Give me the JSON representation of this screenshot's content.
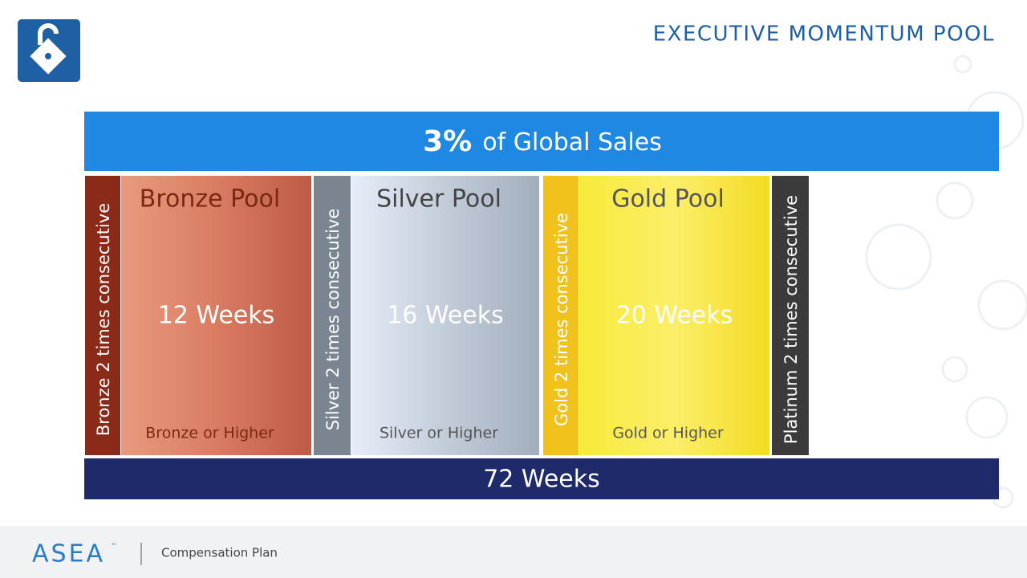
{
  "header": {
    "title": "EXECUTIVE MOMENTUM POOL"
  },
  "banner": {
    "percent": "3%",
    "text": "of Global Sales"
  },
  "pools": [
    {
      "side": "Bronze 2 times consecutive",
      "name": "Bronze Pool",
      "weeks": "12 Weeks",
      "requirement": "Bronze or Higher"
    },
    {
      "side": "Silver 2 times consecutive",
      "name": "Silver Pool",
      "weeks": "16 Weeks",
      "requirement": "Silver or Higher"
    },
    {
      "side": "Gold 2 times consecutive",
      "name": "Gold Pool",
      "weeks": "20 Weeks",
      "requirement": "Gold or Higher"
    },
    {
      "side": "Platinum 2 times consecutive"
    }
  ],
  "total": "72 Weeks",
  "footer": {
    "brand": "ASEA",
    "trademark": "™",
    "caption": "Compensation Plan"
  }
}
